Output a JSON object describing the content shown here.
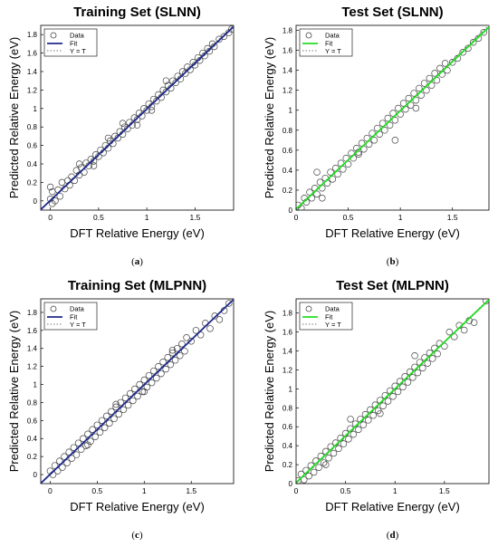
{
  "chart_data": [
    {
      "type": "scatter",
      "title": "Training Set (SLNN)",
      "xlabel": "DFT Relative Energy (eV)",
      "ylabel": "Predicted Relative Energy (eV)",
      "caption": "a",
      "xlim": [
        -0.1,
        1.9
      ],
      "ylim": [
        -0.1,
        1.9
      ],
      "xticks": [
        0,
        0.5,
        1,
        1.5
      ],
      "xtick_labels": [
        "0",
        "0.5",
        "1",
        "1.5"
      ],
      "yticks": [
        0,
        0.2,
        0.4,
        0.6,
        0.8,
        1,
        1.2,
        1.4,
        1.6,
        1.8
      ],
      "ytick_labels": [
        "0",
        "0.2",
        "0.4",
        "0.6",
        "0.8",
        "1",
        "1.2",
        "1.4",
        "1.6",
        "1.8"
      ],
      "legend": [
        "Data",
        "Fit",
        "Y = T"
      ],
      "legend_position": "top-left",
      "fit_color": "#1f2a8c",
      "data_color": "#444444",
      "fit": {
        "slope": 0.99,
        "intercept": 0.005
      },
      "x": [
        0.0,
        0.02,
        0.05,
        0.08,
        0.1,
        0.12,
        0.15,
        0.18,
        0.2,
        0.22,
        0.25,
        0.27,
        0.3,
        0.32,
        0.35,
        0.37,
        0.4,
        0.42,
        0.45,
        0.47,
        0.5,
        0.52,
        0.55,
        0.57,
        0.6,
        0.62,
        0.65,
        0.67,
        0.7,
        0.72,
        0.75,
        0.77,
        0.8,
        0.82,
        0.85,
        0.87,
        0.9,
        0.92,
        0.95,
        0.97,
        1.0,
        1.02,
        1.05,
        1.07,
        1.1,
        1.12,
        1.15,
        1.17,
        1.2,
        1.22,
        1.25,
        1.27,
        1.3,
        1.32,
        1.35,
        1.37,
        1.4,
        1.42,
        1.45,
        1.48,
        1.5,
        1.53,
        1.55,
        1.58,
        1.6,
        1.63,
        1.65,
        1.68,
        1.7,
        1.75,
        1.8,
        1.85,
        1.88,
        0.3,
        0.6,
        0.9,
        1.2,
        0.45,
        0.75,
        1.05,
        0.0,
        0.02
      ],
      "y": [
        0.02,
        0.1,
        0.0,
        0.12,
        0.05,
        0.2,
        0.13,
        0.22,
        0.17,
        0.26,
        0.22,
        0.33,
        0.28,
        0.36,
        0.31,
        0.41,
        0.38,
        0.45,
        0.43,
        0.5,
        0.48,
        0.55,
        0.52,
        0.6,
        0.57,
        0.65,
        0.62,
        0.7,
        0.68,
        0.75,
        0.72,
        0.8,
        0.78,
        0.85,
        0.82,
        0.9,
        0.88,
        0.95,
        0.92,
        1.0,
        0.98,
        1.05,
        1.02,
        1.1,
        1.08,
        1.15,
        1.12,
        1.2,
        1.18,
        1.25,
        1.22,
        1.3,
        1.28,
        1.35,
        1.32,
        1.4,
        1.38,
        1.45,
        1.42,
        1.5,
        1.47,
        1.55,
        1.52,
        1.6,
        1.57,
        1.65,
        1.62,
        1.7,
        1.67,
        1.75,
        1.78,
        1.82,
        1.86,
        0.4,
        0.68,
        0.82,
        1.3,
        0.38,
        0.84,
        0.98,
        0.15,
        -0.03
      ]
    },
    {
      "type": "scatter",
      "title": "Test Set (SLNN)",
      "xlabel": "DFT Relative Energy (eV)",
      "ylabel": "Predicted Relative Energy (eV)",
      "caption": "b",
      "xlim": [
        0,
        1.85
      ],
      "ylim": [
        0,
        1.85
      ],
      "xticks": [
        0,
        0.5,
        1,
        1.5
      ],
      "xtick_labels": [
        "0",
        "0.5",
        "1",
        "1.5"
      ],
      "yticks": [
        0,
        0.2,
        0.4,
        0.6,
        0.8,
        1,
        1.2,
        1.4,
        1.6,
        1.8
      ],
      "ytick_labels": [
        "0",
        "0.2",
        "0.4",
        "0.6",
        "0.8",
        "1",
        "1.2",
        "1.4",
        "1.6",
        "1.8"
      ],
      "legend": [
        "Data",
        "Fit",
        "Y = T"
      ],
      "legend_position": "top-left",
      "fit_color": "#22dd22",
      "data_color": "#444444",
      "fit": {
        "slope": 0.985,
        "intercept": 0.01
      },
      "x": [
        0.02,
        0.05,
        0.08,
        0.1,
        0.13,
        0.15,
        0.18,
        0.2,
        0.23,
        0.25,
        0.28,
        0.3,
        0.33,
        0.35,
        0.38,
        0.4,
        0.43,
        0.45,
        0.48,
        0.5,
        0.53,
        0.55,
        0.58,
        0.6,
        0.63,
        0.65,
        0.68,
        0.7,
        0.73,
        0.75,
        0.78,
        0.8,
        0.83,
        0.85,
        0.88,
        0.9,
        0.93,
        0.95,
        0.98,
        1.0,
        1.03,
        1.05,
        1.08,
        1.1,
        1.13,
        1.15,
        1.18,
        1.2,
        1.23,
        1.25,
        1.28,
        1.3,
        1.33,
        1.35,
        1.38,
        1.4,
        1.43,
        1.45,
        1.5,
        1.55,
        1.6,
        1.65,
        1.7,
        1.75,
        1.8,
        0.2,
        0.25,
        1.15,
        0.6,
        0.95
      ],
      "y": [
        0.05,
        0.02,
        0.12,
        0.08,
        0.18,
        0.12,
        0.22,
        0.16,
        0.28,
        0.22,
        0.32,
        0.27,
        0.38,
        0.31,
        0.42,
        0.36,
        0.47,
        0.41,
        0.52,
        0.46,
        0.57,
        0.52,
        0.62,
        0.56,
        0.67,
        0.61,
        0.72,
        0.66,
        0.77,
        0.7,
        0.82,
        0.76,
        0.87,
        0.8,
        0.92,
        0.85,
        0.97,
        0.9,
        1.02,
        0.96,
        1.07,
        1.01,
        1.12,
        1.05,
        1.17,
        1.1,
        1.22,
        1.15,
        1.27,
        1.2,
        1.32,
        1.25,
        1.37,
        1.3,
        1.42,
        1.36,
        1.47,
        1.4,
        1.48,
        1.52,
        1.58,
        1.62,
        1.68,
        1.72,
        1.78,
        0.38,
        0.12,
        1.02,
        0.58,
        0.7
      ]
    },
    {
      "type": "scatter",
      "title": "Training Set (MLPNN)",
      "xlabel": "DFT Relative Energy (eV)",
      "ylabel": "Predicted Relative Energy (eV)",
      "caption": "c",
      "xlim": [
        -0.1,
        1.95
      ],
      "ylim": [
        -0.1,
        1.95
      ],
      "xticks": [
        0,
        0.5,
        1,
        1.5
      ],
      "xtick_labels": [
        "0",
        "0.5",
        "1",
        "1.5"
      ],
      "yticks": [
        0,
        0.2,
        0.4,
        0.6,
        0.8,
        1,
        1.2,
        1.4,
        1.6,
        1.8
      ],
      "ytick_labels": [
        "0",
        "0.2",
        "0.4",
        "0.6",
        "0.8",
        "1",
        "1.2",
        "1.4",
        "1.6",
        "1.8"
      ],
      "legend": [
        "Data",
        "Fit",
        "Y = T"
      ],
      "legend_position": "top-left",
      "fit_color": "#1f2a8c",
      "data_color": "#444444",
      "fit": {
        "slope": 0.995,
        "intercept": 0.003
      },
      "x": [
        0.0,
        0.03,
        0.05,
        0.08,
        0.1,
        0.13,
        0.15,
        0.18,
        0.2,
        0.23,
        0.25,
        0.28,
        0.3,
        0.33,
        0.35,
        0.38,
        0.4,
        0.43,
        0.45,
        0.48,
        0.5,
        0.53,
        0.55,
        0.58,
        0.6,
        0.63,
        0.65,
        0.68,
        0.7,
        0.73,
        0.75,
        0.78,
        0.8,
        0.83,
        0.85,
        0.88,
        0.9,
        0.93,
        0.95,
        0.98,
        1.0,
        1.03,
        1.05,
        1.08,
        1.1,
        1.13,
        1.15,
        1.18,
        1.2,
        1.23,
        1.25,
        1.28,
        1.3,
        1.33,
        1.35,
        1.38,
        1.4,
        1.43,
        1.45,
        1.5,
        1.55,
        1.6,
        1.65,
        1.7,
        1.75,
        1.8,
        1.85,
        1.9,
        0.4,
        0.7,
        1.0,
        1.3
      ],
      "y": [
        0.04,
        0.0,
        0.1,
        0.04,
        0.15,
        0.08,
        0.2,
        0.13,
        0.25,
        0.18,
        0.3,
        0.22,
        0.35,
        0.28,
        0.4,
        0.32,
        0.45,
        0.37,
        0.5,
        0.42,
        0.55,
        0.47,
        0.6,
        0.52,
        0.65,
        0.57,
        0.7,
        0.62,
        0.75,
        0.67,
        0.8,
        0.72,
        0.85,
        0.77,
        0.9,
        0.82,
        0.95,
        0.87,
        1.0,
        0.92,
        1.05,
        0.97,
        1.1,
        1.02,
        1.15,
        1.07,
        1.2,
        1.12,
        1.25,
        1.17,
        1.3,
        1.22,
        1.35,
        1.27,
        1.4,
        1.32,
        1.45,
        1.37,
        1.52,
        1.48,
        1.6,
        1.55,
        1.68,
        1.62,
        1.76,
        1.72,
        1.82,
        1.9,
        0.33,
        0.78,
        0.92,
        1.38
      ]
    },
    {
      "type": "scatter",
      "title": "Test Set (MLPNN)",
      "xlabel": "DFT Relative Energy (eV)",
      "ylabel": "Predicted Relative Energy (eV)",
      "caption": "d",
      "xlim": [
        0,
        1.95
      ],
      "ylim": [
        0,
        1.95
      ],
      "xticks": [
        0,
        0.5,
        1,
        1.5
      ],
      "xtick_labels": [
        "0",
        "0.5",
        "1",
        "1.5"
      ],
      "yticks": [
        0,
        0.2,
        0.4,
        0.6,
        0.8,
        1,
        1.2,
        1.4,
        1.6,
        1.8
      ],
      "ytick_labels": [
        "0",
        "0.2",
        "0.4",
        "0.6",
        "0.8",
        "1",
        "1.2",
        "1.4",
        "1.6",
        "1.8"
      ],
      "legend": [
        "Data",
        "Fit",
        "Y = T"
      ],
      "legend_position": "top-left",
      "fit_color": "#22dd22",
      "data_color": "#444444",
      "fit": {
        "slope": 0.99,
        "intercept": 0.01
      },
      "x": [
        0.02,
        0.05,
        0.08,
        0.1,
        0.13,
        0.15,
        0.18,
        0.2,
        0.23,
        0.25,
        0.28,
        0.3,
        0.33,
        0.35,
        0.38,
        0.4,
        0.43,
        0.45,
        0.48,
        0.5,
        0.53,
        0.55,
        0.58,
        0.6,
        0.63,
        0.65,
        0.68,
        0.7,
        0.73,
        0.75,
        0.78,
        0.8,
        0.83,
        0.85,
        0.88,
        0.9,
        0.93,
        0.95,
        0.98,
        1.0,
        1.03,
        1.05,
        1.08,
        1.1,
        1.13,
        1.15,
        1.18,
        1.2,
        1.23,
        1.25,
        1.28,
        1.3,
        1.33,
        1.35,
        1.38,
        1.4,
        1.43,
        1.45,
        1.5,
        1.55,
        1.6,
        1.65,
        1.7,
        1.75,
        1.8,
        1.92,
        0.3,
        0.55,
        0.85,
        1.2
      ],
      "y": [
        0.03,
        0.1,
        0.04,
        0.14,
        0.08,
        0.19,
        0.12,
        0.24,
        0.17,
        0.29,
        0.22,
        0.34,
        0.27,
        0.39,
        0.32,
        0.43,
        0.37,
        0.48,
        0.42,
        0.53,
        0.47,
        0.58,
        0.52,
        0.63,
        0.57,
        0.68,
        0.62,
        0.73,
        0.67,
        0.78,
        0.72,
        0.83,
        0.77,
        0.88,
        0.82,
        0.93,
        0.87,
        0.98,
        0.92,
        1.03,
        0.97,
        1.08,
        1.02,
        1.13,
        1.07,
        1.18,
        1.12,
        1.23,
        1.17,
        1.28,
        1.22,
        1.33,
        1.27,
        1.38,
        1.32,
        1.43,
        1.37,
        1.48,
        1.45,
        1.6,
        1.55,
        1.67,
        1.62,
        1.72,
        1.7,
        1.93,
        0.2,
        0.68,
        0.74,
        1.35
      ]
    }
  ]
}
